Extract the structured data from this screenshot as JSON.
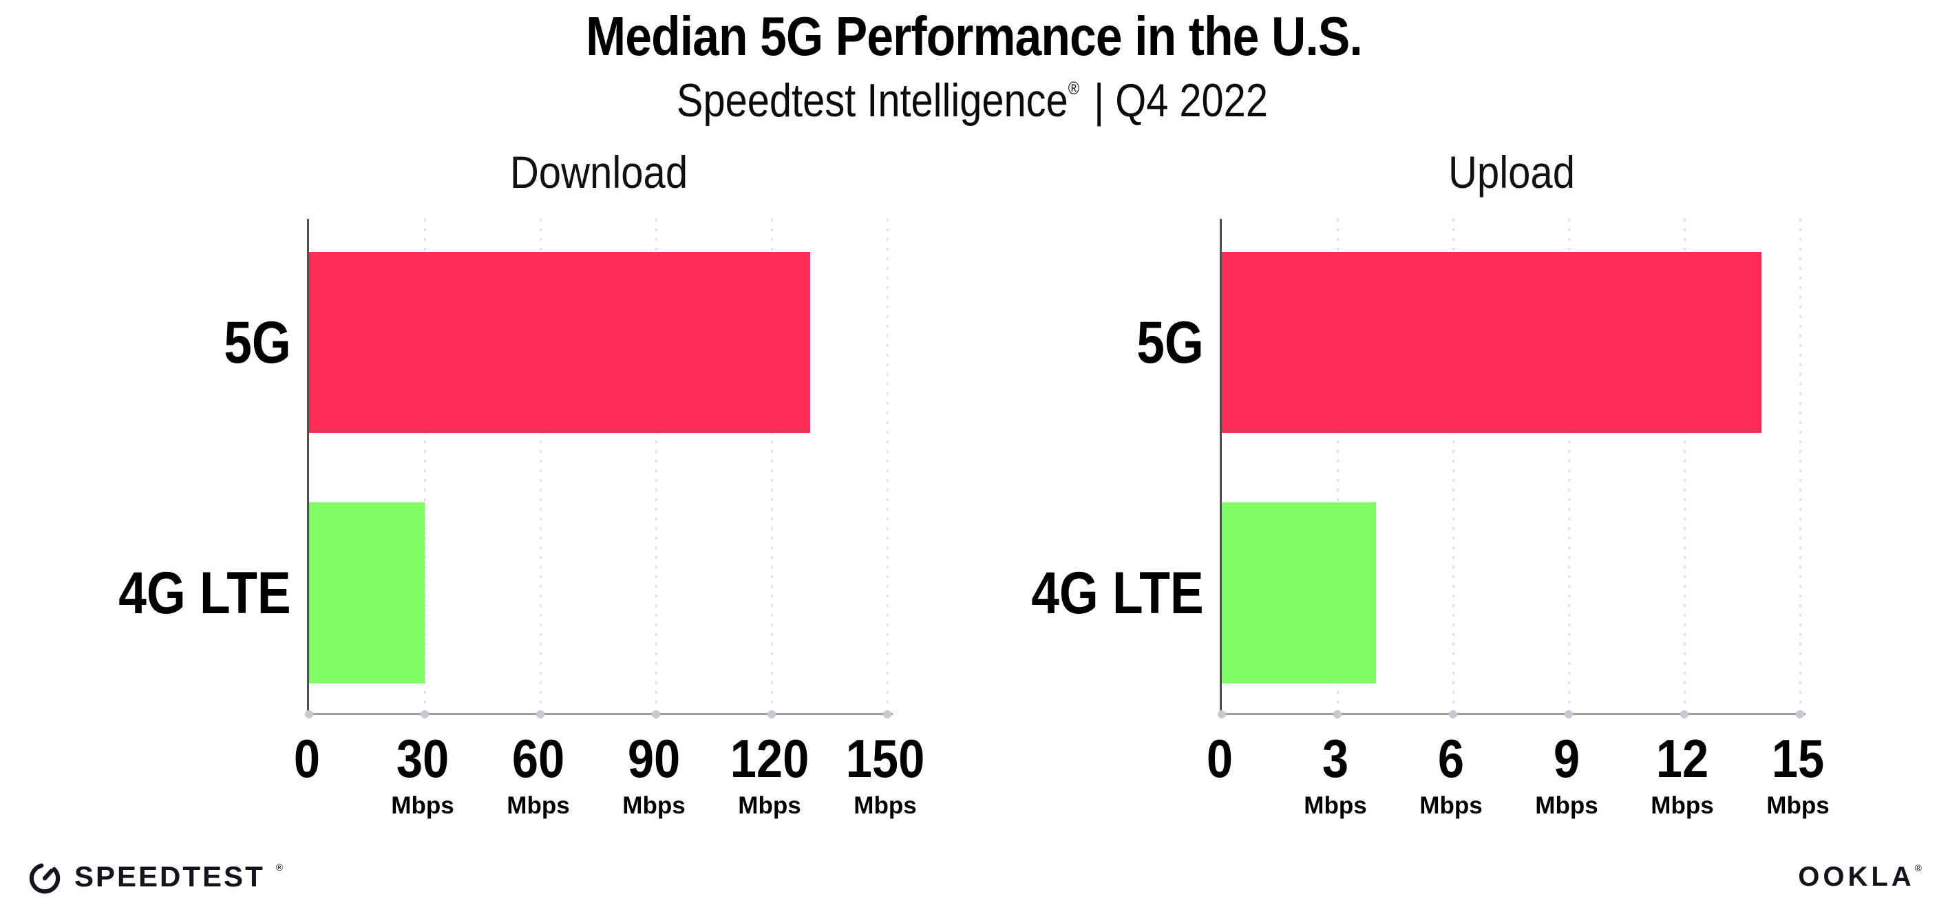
{
  "header": {
    "title": "Median 5G Performance in the U.S.",
    "subtitle_brand": "Speedtest Intelligence",
    "subtitle_mark": "®",
    "subtitle_rest": " | Q4 2022"
  },
  "chart_data": [
    {
      "type": "bar",
      "orientation": "horizontal",
      "title": "Download",
      "categories": [
        "5G",
        "4G LTE"
      ],
      "values": [
        130,
        30
      ],
      "unit": "Mbps",
      "xlabel": "",
      "ylabel": "",
      "xlim": [
        0,
        152
      ],
      "xticks": [
        0,
        30,
        60,
        90,
        120,
        150
      ],
      "xtick_unit": "Mbps",
      "bar_colors": [
        "#fd2d55",
        "#80fb64"
      ],
      "grid": "vertical-dotted-at-ticks",
      "legend_position": "none"
    },
    {
      "type": "bar",
      "orientation": "horizontal",
      "title": "Upload",
      "categories": [
        "5G",
        "4G LTE"
      ],
      "values": [
        14,
        4
      ],
      "unit": "Mbps",
      "xlabel": "",
      "ylabel": "",
      "xlim": [
        0,
        15.2
      ],
      "xticks": [
        0,
        3,
        6,
        9,
        12,
        15
      ],
      "xtick_unit": "Mbps",
      "bar_colors": [
        "#fd2d55",
        "#80fb64"
      ],
      "grid": "vertical-dotted-at-ticks",
      "legend_position": "none"
    }
  ],
  "footer": {
    "speedtest_label": "SPEEDTEST",
    "speedtest_mark": "®",
    "speedtest_icon": "speedtest-gauge-icon",
    "ookla_label": "OOKLA",
    "ookla_mark": "®"
  },
  "colors": {
    "bar_5g": "#fd2d55",
    "bar_4g_lte": "#80fb64",
    "y_axis": "#4c4c55",
    "x_axis": "#9b9ba3",
    "grid_dots": "#e1e1eb",
    "tick_dot": "#c9c9d3",
    "text": "#000000",
    "logo_text": "#14141f"
  }
}
